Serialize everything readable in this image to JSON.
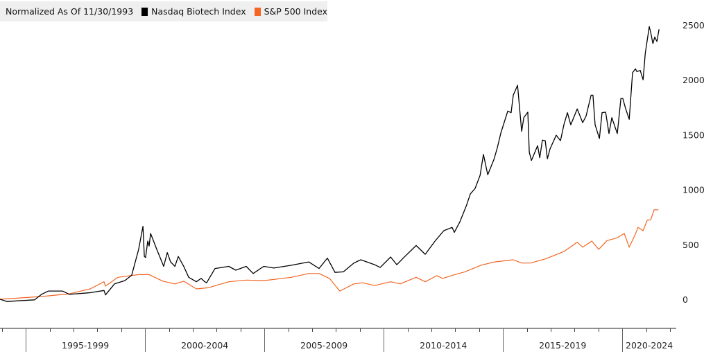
{
  "chart_data": {
    "type": "line",
    "title": "Normalized As Of 11/30/1993",
    "xlabel": "",
    "ylabel": "",
    "ylim": [
      -270,
      2500
    ],
    "xlim": [
      1993.92,
      2022.26
    ],
    "y_ticks": [
      "2500",
      "2000",
      "1500",
      "1000",
      "500",
      "0"
    ],
    "y_tick_values": [
      2500,
      2000,
      1500,
      1000,
      500,
      0
    ],
    "y_axis_side": "right",
    "x_groups": [
      {
        "label": "1995-1999",
        "start": 1995,
        "end": 2000
      },
      {
        "label": "2000-2004",
        "start": 2000,
        "end": 2005
      },
      {
        "label": "2005-2009",
        "start": 2005,
        "end": 2010
      },
      {
        "label": "2010-2014",
        "start": 2010,
        "end": 2015
      },
      {
        "label": "2015-2019",
        "start": 2015,
        "end": 2020
      },
      {
        "label": "2020-2024",
        "start": 2020,
        "end": 2022.26
      }
    ],
    "grid": false,
    "legend_position": "top-left",
    "series": [
      {
        "name": "Nasdaq Biotech Index",
        "color": "#000000",
        "points": [
          [
            1993.92,
            0
          ],
          [
            1994.21,
            -20
          ],
          [
            1995.37,
            -5
          ],
          [
            1995.66,
            45
          ],
          [
            1995.95,
            75
          ],
          [
            1996.54,
            75
          ],
          [
            1996.83,
            45
          ],
          [
            1997.7,
            60
          ],
          [
            1998.28,
            80
          ],
          [
            1998.34,
            40
          ],
          [
            1998.72,
            140
          ],
          [
            1999.15,
            170
          ],
          [
            1999.44,
            220
          ],
          [
            1999.73,
            455
          ],
          [
            1999.91,
            665
          ],
          [
            1999.97,
            390
          ],
          [
            2000.02,
            380
          ],
          [
            2000.11,
            530
          ],
          [
            2000.17,
            485
          ],
          [
            2000.23,
            600
          ],
          [
            2000.32,
            550
          ],
          [
            2000.49,
            455
          ],
          [
            2000.78,
            300
          ],
          [
            2000.93,
            425
          ],
          [
            2001.07,
            340
          ],
          [
            2001.25,
            300
          ],
          [
            2001.39,
            390
          ],
          [
            2001.62,
            300
          ],
          [
            2001.83,
            200
          ],
          [
            2002.15,
            160
          ],
          [
            2002.35,
            190
          ],
          [
            2002.5,
            160
          ],
          [
            2002.58,
            150
          ],
          [
            2002.93,
            280
          ],
          [
            2003.51,
            300
          ],
          [
            2003.8,
            265
          ],
          [
            2004.24,
            300
          ],
          [
            2004.53,
            235
          ],
          [
            2004.97,
            300
          ],
          [
            2005.4,
            285
          ],
          [
            2006.13,
            310
          ],
          [
            2006.86,
            340
          ],
          [
            2007.29,
            280
          ],
          [
            2007.64,
            375
          ],
          [
            2007.96,
            245
          ],
          [
            2008.31,
            250
          ],
          [
            2008.75,
            330
          ],
          [
            2009.04,
            360
          ],
          [
            2009.62,
            315
          ],
          [
            2009.85,
            290
          ],
          [
            2010.29,
            385
          ],
          [
            2010.55,
            315
          ],
          [
            2010.84,
            380
          ],
          [
            2011.36,
            490
          ],
          [
            2011.74,
            410
          ],
          [
            2012.15,
            530
          ],
          [
            2012.52,
            625
          ],
          [
            2012.87,
            655
          ],
          [
            2012.96,
            610
          ],
          [
            2013.19,
            705
          ],
          [
            2013.46,
            850
          ],
          [
            2013.63,
            960
          ],
          [
            2013.83,
            1010
          ],
          [
            2014.04,
            1130
          ],
          [
            2014.18,
            1320
          ],
          [
            2014.36,
            1135
          ],
          [
            2014.62,
            1275
          ],
          [
            2014.76,
            1380
          ],
          [
            2014.91,
            1515
          ],
          [
            2015.2,
            1715
          ],
          [
            2015.34,
            1700
          ],
          [
            2015.43,
            1860
          ],
          [
            2015.61,
            1950
          ],
          [
            2015.78,
            1530
          ],
          [
            2015.87,
            1655
          ],
          [
            2016.04,
            1705
          ],
          [
            2016.1,
            1340
          ],
          [
            2016.19,
            1265
          ],
          [
            2016.45,
            1400
          ],
          [
            2016.54,
            1290
          ],
          [
            2016.65,
            1450
          ],
          [
            2016.77,
            1445
          ],
          [
            2016.86,
            1280
          ],
          [
            2016.97,
            1370
          ],
          [
            2017.23,
            1495
          ],
          [
            2017.41,
            1445
          ],
          [
            2017.55,
            1590
          ],
          [
            2017.7,
            1700
          ],
          [
            2017.84,
            1590
          ],
          [
            2018.11,
            1735
          ],
          [
            2018.34,
            1610
          ],
          [
            2018.48,
            1670
          ],
          [
            2018.69,
            1860
          ],
          [
            2018.77,
            1860
          ],
          [
            2018.86,
            1590
          ],
          [
            2019.04,
            1465
          ],
          [
            2019.15,
            1700
          ],
          [
            2019.3,
            1705
          ],
          [
            2019.44,
            1510
          ],
          [
            2019.56,
            1655
          ],
          [
            2019.79,
            1510
          ],
          [
            2019.94,
            1830
          ],
          [
            2020.02,
            1830
          ],
          [
            2020.14,
            1735
          ],
          [
            2020.29,
            1640
          ],
          [
            2020.43,
            2065
          ],
          [
            2020.55,
            2100
          ],
          [
            2020.61,
            2075
          ],
          [
            2020.75,
            2085
          ],
          [
            2020.87,
            2000
          ],
          [
            2020.96,
            2240
          ],
          [
            2021.13,
            2485
          ],
          [
            2021.19,
            2430
          ],
          [
            2021.28,
            2330
          ],
          [
            2021.36,
            2390
          ],
          [
            2021.45,
            2350
          ],
          [
            2021.54,
            2460
          ]
        ]
      },
      {
        "name": "S&P 500 Index",
        "color": "#f26522",
        "points": [
          [
            1993.92,
            0
          ],
          [
            1995.66,
            25
          ],
          [
            1996.83,
            50
          ],
          [
            1997.7,
            95
          ],
          [
            1998.28,
            160
          ],
          [
            1998.34,
            120
          ],
          [
            1998.86,
            200
          ],
          [
            1999.73,
            225
          ],
          [
            2000.17,
            225
          ],
          [
            2000.75,
            165
          ],
          [
            2001.25,
            140
          ],
          [
            2001.62,
            165
          ],
          [
            2002.15,
            95
          ],
          [
            2002.64,
            105
          ],
          [
            2003.51,
            160
          ],
          [
            2004.24,
            175
          ],
          [
            2004.97,
            170
          ],
          [
            2006.13,
            200
          ],
          [
            2006.86,
            235
          ],
          [
            2007.29,
            235
          ],
          [
            2007.73,
            190
          ],
          [
            2008.16,
            75
          ],
          [
            2008.75,
            140
          ],
          [
            2009.12,
            150
          ],
          [
            2009.62,
            125
          ],
          [
            2010.29,
            160
          ],
          [
            2010.69,
            140
          ],
          [
            2011.36,
            200
          ],
          [
            2011.74,
            160
          ],
          [
            2012.23,
            215
          ],
          [
            2012.47,
            190
          ],
          [
            2012.9,
            220
          ],
          [
            2013.4,
            250
          ],
          [
            2014.07,
            310
          ],
          [
            2014.65,
            340
          ],
          [
            2015.43,
            360
          ],
          [
            2015.78,
            330
          ],
          [
            2016.16,
            330
          ],
          [
            2016.8,
            370
          ],
          [
            2017.55,
            435
          ],
          [
            2018.11,
            520
          ],
          [
            2018.34,
            475
          ],
          [
            2018.72,
            530
          ],
          [
            2019.01,
            455
          ],
          [
            2019.36,
            535
          ],
          [
            2019.79,
            560
          ],
          [
            2020.08,
            600
          ],
          [
            2020.29,
            475
          ],
          [
            2020.52,
            580
          ],
          [
            2020.66,
            655
          ],
          [
            2020.87,
            625
          ],
          [
            2021.04,
            720
          ],
          [
            2021.19,
            725
          ],
          [
            2021.33,
            815
          ],
          [
            2021.51,
            815
          ]
        ]
      }
    ]
  }
}
